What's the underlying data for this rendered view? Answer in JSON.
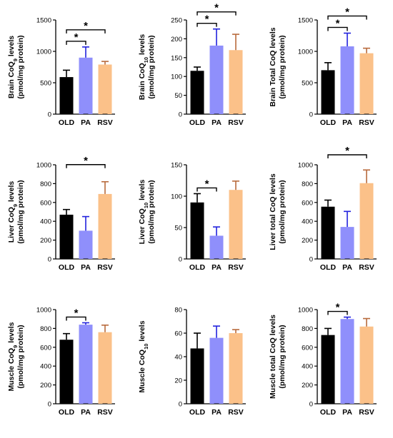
{
  "chart_data": [
    {
      "type": "bar",
      "ylabel": "Brain CoQ9 levels",
      "ylabel_main": "Brain CoQ",
      "ylabel_sub": "9",
      "ylabel_rest": " levels",
      "ylabel2": "(pmol/mg protein)",
      "categories": [
        "OLD",
        "PA",
        "RSV"
      ],
      "values": [
        590,
        900,
        790
      ],
      "errors": [
        110,
        170,
        50
      ],
      "ylim": [
        0,
        1500
      ],
      "yticks": [
        0,
        500,
        1000,
        1500
      ],
      "sig": [
        [
          "OLD",
          "PA",
          "*"
        ],
        [
          "OLD",
          "RSV",
          "*"
        ]
      ]
    },
    {
      "type": "bar",
      "ylabel": "Brain CoQ10 levels",
      "ylabel_main": "Brain CoQ",
      "ylabel_sub": "10",
      "ylabel_rest": " levels",
      "ylabel2": "(pmol/mg protein)",
      "categories": [
        "OLD",
        "PA",
        "RSV"
      ],
      "values": [
        115,
        182,
        170
      ],
      "errors": [
        10,
        44,
        42
      ],
      "ylim": [
        0,
        250
      ],
      "yticks": [
        0,
        50,
        100,
        150,
        200,
        250
      ],
      "sig": [
        [
          "OLD",
          "PA",
          "*"
        ],
        [
          "OLD",
          "RSV",
          "*"
        ]
      ]
    },
    {
      "type": "bar",
      "ylabel": "Brain Total CoQ levels",
      "ylabel_main": "Brain Total CoQ levels",
      "ylabel_sub": "",
      "ylabel_rest": "",
      "ylabel2": "(pmol/mg protein)",
      "categories": [
        "OLD",
        "PA",
        "RSV"
      ],
      "values": [
        700,
        1080,
        970
      ],
      "errors": [
        120,
        210,
        80
      ],
      "ylim": [
        0,
        1500
      ],
      "yticks": [
        0,
        500,
        1000,
        1500
      ],
      "sig": [
        [
          "OLD",
          "PA",
          "*"
        ],
        [
          "OLD",
          "RSV",
          "*"
        ]
      ]
    },
    {
      "type": "bar",
      "ylabel": "Liver CoQ9 levels",
      "ylabel_main": "Liver CoQ",
      "ylabel_sub": "9",
      "ylabel_rest": " levels",
      "ylabel2": "(pmol/mg protein)",
      "categories": [
        "OLD",
        "PA",
        "RSV"
      ],
      "values": [
        470,
        300,
        690
      ],
      "errors": [
        55,
        150,
        130
      ],
      "ylim": [
        0,
        1000
      ],
      "yticks": [
        0,
        200,
        400,
        600,
        800,
        1000
      ],
      "sig": [
        [
          "OLD",
          "RSV",
          "*"
        ]
      ]
    },
    {
      "type": "bar",
      "ylabel": "Liver CoQ10 levels",
      "ylabel_main": "Liver CoQ",
      "ylabel_sub": "10",
      "ylabel_rest": " levels",
      "ylabel2": "(pmol/mg protein)",
      "categories": [
        "OLD",
        "PA",
        "RSV"
      ],
      "values": [
        90,
        37,
        110
      ],
      "errors": [
        14,
        14,
        14
      ],
      "ylim": [
        0,
        150
      ],
      "yticks": [
        0,
        50,
        100,
        150
      ],
      "sig": [
        [
          "OLD",
          "PA",
          "*"
        ]
      ]
    },
    {
      "type": "bar",
      "ylabel": "Liver total CoQ levels",
      "ylabel_main": "Liver total CoQ levels",
      "ylabel_sub": "",
      "ylabel_rest": "",
      "ylabel2": "(pmol/mg protein)",
      "categories": [
        "OLD",
        "PA",
        "RSV"
      ],
      "values": [
        555,
        340,
        805
      ],
      "errors": [
        70,
        165,
        140
      ],
      "ylim": [
        0,
        1000
      ],
      "yticks": [
        0,
        200,
        400,
        600,
        800,
        1000
      ],
      "sig": [
        [
          "OLD",
          "RSV",
          "*"
        ]
      ]
    },
    {
      "type": "bar",
      "ylabel": "Muscle CoQ9 levels",
      "ylabel_main": "Muscle CoQ",
      "ylabel_sub": "9",
      "ylabel_rest": " levels",
      "ylabel2": "(pmol/mg protein)",
      "categories": [
        "OLD",
        "PA",
        "RSV"
      ],
      "values": [
        680,
        840,
        760
      ],
      "errors": [
        65,
        20,
        75
      ],
      "ylim": [
        0,
        1000
      ],
      "yticks": [
        0,
        200,
        400,
        600,
        800,
        1000
      ],
      "sig": [
        [
          "OLD",
          "PA",
          "*"
        ]
      ]
    },
    {
      "type": "bar",
      "ylabel": "Muscle CoQ10 levels",
      "ylabel_main": "Muscle CoQ",
      "ylabel_sub": "10",
      "ylabel_rest": " levels",
      "ylabel2": "",
      "categories": [
        "OLD",
        "PA",
        "RSV"
      ],
      "values": [
        47,
        56,
        60
      ],
      "errors": [
        13,
        10,
        3
      ],
      "ylim": [
        0,
        80
      ],
      "yticks": [
        0,
        20,
        40,
        60,
        80
      ],
      "sig": []
    },
    {
      "type": "bar",
      "ylabel": "Muscle total CoQ levels",
      "ylabel_main": "Muscle total CoQ levels",
      "ylabel_sub": "",
      "ylabel_rest": "",
      "ylabel2": "(pmol/mg protein)",
      "categories": [
        "OLD",
        "PA",
        "RSV"
      ],
      "values": [
        730,
        900,
        820
      ],
      "errors": [
        70,
        20,
        85
      ],
      "ylim": [
        0,
        1000
      ],
      "yticks": [
        0,
        200,
        400,
        600,
        800,
        1000
      ],
      "sig": [
        [
          "OLD",
          "PA",
          "*"
        ]
      ]
    }
  ],
  "colors": {
    "OLD": {
      "fill": "#000000",
      "err": "#000000"
    },
    "PA": {
      "fill": "#8f8ffb",
      "err": "#2222dd"
    },
    "RSV": {
      "fill": "#fbc189",
      "err": "#b86a3c"
    },
    "axis": "#000000"
  }
}
